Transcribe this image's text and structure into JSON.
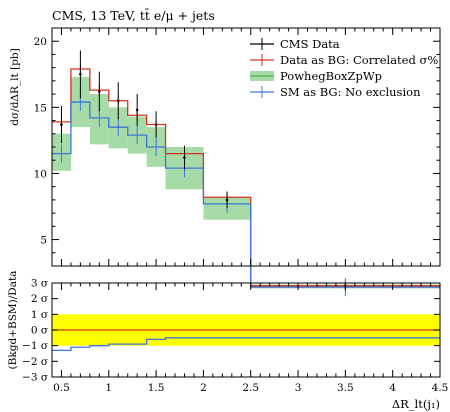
{
  "chart_data": [
    {
      "type": "line",
      "panel": "main",
      "title": "CMS, 13 TeV, tt̄ e/μ + jets",
      "ylabel": "dσ/dΔR_lt [pb]",
      "ylim": [
        3,
        21
      ],
      "yticks": [
        5,
        10,
        15,
        20
      ],
      "x_bin_edges": [
        0.4,
        0.6,
        0.8,
        1.0,
        1.2,
        1.4,
        1.6,
        2.0,
        2.5,
        4.5
      ],
      "grid": false,
      "legend": "top-right",
      "series": [
        {
          "name": "CMS Data",
          "color": "#000000",
          "style": "points-with-errors",
          "x": [
            0.5,
            0.7,
            0.9,
            1.1,
            1.3,
            1.5,
            1.8,
            2.25,
            3.5
          ],
          "values": [
            13.7,
            17.5,
            16.2,
            15.5,
            14.8,
            13.7,
            11.2,
            8.0,
            1.5
          ],
          "errors": [
            1.4,
            1.8,
            1.5,
            1.4,
            1.2,
            1.0,
            0.9,
            0.6,
            0.2
          ]
        },
        {
          "name": "Data as BG: Correlated σ%",
          "color": "#d7301f",
          "style": "histogram",
          "values": [
            13.9,
            17.9,
            16.3,
            15.5,
            14.4,
            13.7,
            11.5,
            8.2,
            1.5
          ]
        },
        {
          "name": "PowhegBoxZpWp",
          "color": "#55b055",
          "band_color": "#a6daa6",
          "style": "band",
          "lower": [
            10.2,
            13.5,
            12.2,
            11.9,
            11.5,
            10.5,
            8.8,
            6.5,
            1.3
          ],
          "upper": [
            13.0,
            17.3,
            16.0,
            15.0,
            14.3,
            13.5,
            12.0,
            8.2,
            1.6
          ]
        },
        {
          "name": "SM as BG: No exclusion",
          "color": "#3b78d9",
          "style": "histogram",
          "values": [
            11.5,
            15.4,
            14.2,
            13.5,
            12.9,
            12.0,
            10.4,
            7.7,
            1.4
          ]
        }
      ]
    },
    {
      "type": "line",
      "panel": "ratio",
      "ylabel": "(Bkgd+BSM)/Data",
      "ylim": [
        -3,
        3
      ],
      "ytick_labels": [
        "−3 σ",
        "−2 σ",
        "−1 σ",
        "0 σ",
        "1 σ",
        "2 σ",
        "3 σ"
      ],
      "xlabel": "ΔR_lt(j₁)",
      "xticks": [
        "0.5",
        "1",
        "1.5",
        "2",
        "2.5",
        "3",
        "3.5",
        "4",
        "4.5"
      ],
      "band": {
        "from": -1,
        "to": 1,
        "color": "#ffff00"
      },
      "series": [
        {
          "name": "Data as BG: Correlated σ%",
          "color": "#d7301f",
          "values": [
            0,
            0,
            0,
            0,
            0,
            0,
            0,
            0,
            0
          ]
        },
        {
          "name": "SM as BG: No exclusion",
          "color": "#3b78d9",
          "values": [
            -1.3,
            -1.1,
            -1.0,
            -0.9,
            -0.9,
            -0.6,
            -0.5,
            -0.5,
            -0.5
          ]
        }
      ]
    }
  ]
}
